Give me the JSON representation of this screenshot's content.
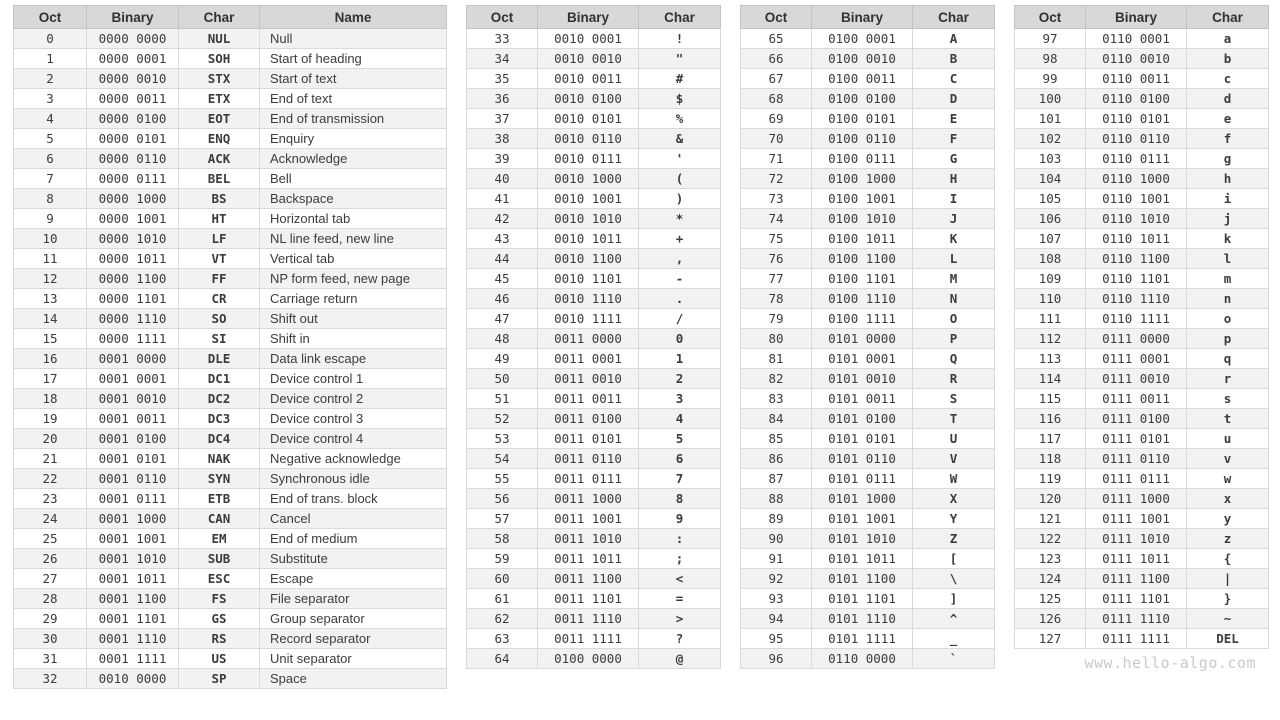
{
  "watermark": "www.hello-algo.com",
  "colors": {
    "header_bg": "#d8d8d8",
    "row_alt_bg": "#f2f2f2",
    "border": "#d9d9d9",
    "header_border": "#c4c4c4",
    "text": "#3c3c3c",
    "header_text": "#323232",
    "watermark": "#c9c9c9"
  },
  "tables": [
    {
      "name": "ascii-table-control-characters",
      "columns": [
        {
          "key": "oct",
          "label": "Oct"
        },
        {
          "key": "binary",
          "label": "Binary"
        },
        {
          "key": "char",
          "label": "Char"
        },
        {
          "key": "name",
          "label": "Name"
        }
      ],
      "rows": [
        [
          0,
          "0000 0000",
          "NUL",
          "Null"
        ],
        [
          1,
          "0000 0001",
          "SOH",
          "Start of heading"
        ],
        [
          2,
          "0000 0010",
          "STX",
          "Start of text"
        ],
        [
          3,
          "0000 0011",
          "ETX",
          "End of text"
        ],
        [
          4,
          "0000 0100",
          "EOT",
          "End of transmission"
        ],
        [
          5,
          "0000 0101",
          "ENQ",
          "Enquiry"
        ],
        [
          6,
          "0000 0110",
          "ACK",
          "Acknowledge"
        ],
        [
          7,
          "0000 0111",
          "BEL",
          "Bell"
        ],
        [
          8,
          "0000 1000",
          "BS",
          "Backspace"
        ],
        [
          9,
          "0000 1001",
          "HT",
          "Horizontal tab"
        ],
        [
          10,
          "0000 1010",
          "LF",
          "NL line feed, new line"
        ],
        [
          11,
          "0000 1011",
          "VT",
          "Vertical tab"
        ],
        [
          12,
          "0000 1100",
          "FF",
          "NP form feed, new page"
        ],
        [
          13,
          "0000 1101",
          "CR",
          "Carriage return"
        ],
        [
          14,
          "0000 1110",
          "SO",
          "Shift out"
        ],
        [
          15,
          "0000 1111",
          "SI",
          "Shift in"
        ],
        [
          16,
          "0001 0000",
          "DLE",
          "Data link escape"
        ],
        [
          17,
          "0001 0001",
          "DC1",
          "Device control 1"
        ],
        [
          18,
          "0001 0010",
          "DC2",
          "Device control 2"
        ],
        [
          19,
          "0001 0011",
          "DC3",
          "Device control 3"
        ],
        [
          20,
          "0001 0100",
          "DC4",
          "Device control 4"
        ],
        [
          21,
          "0001 0101",
          "NAK",
          "Negative acknowledge"
        ],
        [
          22,
          "0001 0110",
          "SYN",
          "Synchronous idle"
        ],
        [
          23,
          "0001 0111",
          "ETB",
          "End of trans. block"
        ],
        [
          24,
          "0001 1000",
          "CAN",
          "Cancel"
        ],
        [
          25,
          "0001 1001",
          "EM",
          "End of medium"
        ],
        [
          26,
          "0001 1010",
          "SUB",
          "Substitute"
        ],
        [
          27,
          "0001 1011",
          "ESC",
          "Escape"
        ],
        [
          28,
          "0001 1100",
          "FS",
          "File separator"
        ],
        [
          29,
          "0001 1101",
          "GS",
          "Group separator"
        ],
        [
          30,
          "0001 1110",
          "RS",
          "Record separator"
        ],
        [
          31,
          "0001 1111",
          "US",
          "Unit separator"
        ],
        [
          32,
          "0010 0000",
          "SP",
          "Space"
        ]
      ]
    },
    {
      "name": "ascii-table-symbols-digits",
      "columns": [
        {
          "key": "oct",
          "label": "Oct"
        },
        {
          "key": "binary",
          "label": "Binary"
        },
        {
          "key": "char",
          "label": "Char"
        }
      ],
      "rows": [
        [
          33,
          "0010 0001",
          "!"
        ],
        [
          34,
          "0010 0010",
          "\""
        ],
        [
          35,
          "0010 0011",
          "#"
        ],
        [
          36,
          "0010 0100",
          "$"
        ],
        [
          37,
          "0010 0101",
          "%"
        ],
        [
          38,
          "0010 0110",
          "&"
        ],
        [
          39,
          "0010 0111",
          "'"
        ],
        [
          40,
          "0010 1000",
          "("
        ],
        [
          41,
          "0010 1001",
          ")"
        ],
        [
          42,
          "0010 1010",
          "*"
        ],
        [
          43,
          "0010 1011",
          "+"
        ],
        [
          44,
          "0010 1100",
          ","
        ],
        [
          45,
          "0010 1101",
          "-"
        ],
        [
          46,
          "0010 1110",
          "."
        ],
        [
          47,
          "0010 1111",
          "/"
        ],
        [
          48,
          "0011 0000",
          "0"
        ],
        [
          49,
          "0011 0001",
          "1"
        ],
        [
          50,
          "0011 0010",
          "2"
        ],
        [
          51,
          "0011 0011",
          "3"
        ],
        [
          52,
          "0011 0100",
          "4"
        ],
        [
          53,
          "0011 0101",
          "5"
        ],
        [
          54,
          "0011 0110",
          "6"
        ],
        [
          55,
          "0011 0111",
          "7"
        ],
        [
          56,
          "0011 1000",
          "8"
        ],
        [
          57,
          "0011 1001",
          "9"
        ],
        [
          58,
          "0011 1010",
          ":"
        ],
        [
          59,
          "0011 1011",
          ";"
        ],
        [
          60,
          "0011 1100",
          "<"
        ],
        [
          61,
          "0011 1101",
          "="
        ],
        [
          62,
          "0011 1110",
          ">"
        ],
        [
          63,
          "0011 1111",
          "?"
        ],
        [
          64,
          "0100 0000",
          "@"
        ]
      ]
    },
    {
      "name": "ascii-table-uppercase",
      "columns": [
        {
          "key": "oct",
          "label": "Oct"
        },
        {
          "key": "binary",
          "label": "Binary"
        },
        {
          "key": "char",
          "label": "Char"
        }
      ],
      "rows": [
        [
          65,
          "0100 0001",
          "A"
        ],
        [
          66,
          "0100 0010",
          "B"
        ],
        [
          67,
          "0100 0011",
          "C"
        ],
        [
          68,
          "0100 0100",
          "D"
        ],
        [
          69,
          "0100 0101",
          "E"
        ],
        [
          70,
          "0100 0110",
          "F"
        ],
        [
          71,
          "0100 0111",
          "G"
        ],
        [
          72,
          "0100 1000",
          "H"
        ],
        [
          73,
          "0100 1001",
          "I"
        ],
        [
          74,
          "0100 1010",
          "J"
        ],
        [
          75,
          "0100 1011",
          "K"
        ],
        [
          76,
          "0100 1100",
          "L"
        ],
        [
          77,
          "0100 1101",
          "M"
        ],
        [
          78,
          "0100 1110",
          "N"
        ],
        [
          79,
          "0100 1111",
          "O"
        ],
        [
          80,
          "0101 0000",
          "P"
        ],
        [
          81,
          "0101 0001",
          "Q"
        ],
        [
          82,
          "0101 0010",
          "R"
        ],
        [
          83,
          "0101 0011",
          "S"
        ],
        [
          84,
          "0101 0100",
          "T"
        ],
        [
          85,
          "0101 0101",
          "U"
        ],
        [
          86,
          "0101 0110",
          "V"
        ],
        [
          87,
          "0101 0111",
          "W"
        ],
        [
          88,
          "0101 1000",
          "X"
        ],
        [
          89,
          "0101 1001",
          "Y"
        ],
        [
          90,
          "0101 1010",
          "Z"
        ],
        [
          91,
          "0101 1011",
          "["
        ],
        [
          92,
          "0101 1100",
          "\\"
        ],
        [
          93,
          "0101 1101",
          "]"
        ],
        [
          94,
          "0101 1110",
          "^"
        ],
        [
          95,
          "0101 1111",
          "_"
        ],
        [
          96,
          "0110 0000",
          "`"
        ]
      ]
    },
    {
      "name": "ascii-table-lowercase",
      "columns": [
        {
          "key": "oct",
          "label": "Oct"
        },
        {
          "key": "binary",
          "label": "Binary"
        },
        {
          "key": "char",
          "label": "Char"
        }
      ],
      "rows": [
        [
          97,
          "0110 0001",
          "a"
        ],
        [
          98,
          "0110 0010",
          "b"
        ],
        [
          99,
          "0110 0011",
          "c"
        ],
        [
          100,
          "0110 0100",
          "d"
        ],
        [
          101,
          "0110 0101",
          "e"
        ],
        [
          102,
          "0110 0110",
          "f"
        ],
        [
          103,
          "0110 0111",
          "g"
        ],
        [
          104,
          "0110 1000",
          "h"
        ],
        [
          105,
          "0110 1001",
          "i"
        ],
        [
          106,
          "0110 1010",
          "j"
        ],
        [
          107,
          "0110 1011",
          "k"
        ],
        [
          108,
          "0110 1100",
          "l"
        ],
        [
          109,
          "0110 1101",
          "m"
        ],
        [
          110,
          "0110 1110",
          "n"
        ],
        [
          111,
          "0110 1111",
          "o"
        ],
        [
          112,
          "0111 0000",
          "p"
        ],
        [
          113,
          "0111 0001",
          "q"
        ],
        [
          114,
          "0111 0010",
          "r"
        ],
        [
          115,
          "0111 0011",
          "s"
        ],
        [
          116,
          "0111 0100",
          "t"
        ],
        [
          117,
          "0111 0101",
          "u"
        ],
        [
          118,
          "0111 0110",
          "v"
        ],
        [
          119,
          "0111 0111",
          "w"
        ],
        [
          120,
          "0111 1000",
          "x"
        ],
        [
          121,
          "0111 1001",
          "y"
        ],
        [
          122,
          "0111 1010",
          "z"
        ],
        [
          123,
          "0111 1011",
          "{"
        ],
        [
          124,
          "0111 1100",
          "|"
        ],
        [
          125,
          "0111 1101",
          "}"
        ],
        [
          126,
          "0111 1110",
          "~"
        ],
        [
          127,
          "0111 1111",
          "DEL"
        ]
      ]
    }
  ]
}
